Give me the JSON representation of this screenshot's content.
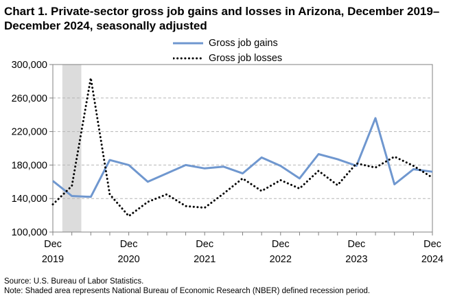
{
  "chart_data": {
    "type": "line",
    "title": "Chart 1. Private-sector gross job gains and losses in Arizona, December 2019–December 2024, seasonally adjusted",
    "x": [
      "Dec 2019",
      "Mar 2020",
      "Jun 2020",
      "Sep 2020",
      "Dec 2020",
      "Mar 2021",
      "Jun 2021",
      "Sep 2021",
      "Dec 2021",
      "Mar 2022",
      "Jun 2022",
      "Sep 2022",
      "Dec 2022",
      "Mar 2023",
      "Jun 2023",
      "Sep 2023",
      "Dec 2023",
      "Mar 2024",
      "Jun 2024",
      "Sep 2024",
      "Dec 2024"
    ],
    "series": [
      {
        "name": "Gross job gains",
        "style": "solid",
        "color": "#6f97cf",
        "values": [
          161000,
          143000,
          142000,
          186000,
          180000,
          160000,
          170000,
          180000,
          176000,
          178000,
          170000,
          189000,
          179000,
          164000,
          193000,
          187000,
          179000,
          236000,
          157000,
          175000,
          172000
        ]
      },
      {
        "name": "Gross job losses",
        "style": "dotted",
        "color": "#000000",
        "values": [
          133000,
          155000,
          284000,
          145000,
          119000,
          136000,
          145000,
          131000,
          129000,
          146000,
          164000,
          149000,
          162000,
          152000,
          173000,
          156000,
          182000,
          177000,
          190000,
          179000,
          165000
        ]
      }
    ],
    "xticks": [
      {
        "month": "Dec",
        "year": "2019",
        "index": 0
      },
      {
        "month": "Dec",
        "year": "2020",
        "index": 4
      },
      {
        "month": "Dec",
        "year": "2021",
        "index": 8
      },
      {
        "month": "Dec",
        "year": "2022",
        "index": 12
      },
      {
        "month": "Dec",
        "year": "2023",
        "index": 16
      },
      {
        "month": "Dec",
        "year": "2024",
        "index": 20
      }
    ],
    "yticks": [
      "100,000",
      "140,000",
      "180,000",
      "220,000",
      "260,000",
      "300,000"
    ],
    "ylim": [
      100000,
      300000
    ],
    "recession": {
      "start": 0.5,
      "end": 1.5,
      "color": "#dcdcdc"
    },
    "grid": true,
    "legend_position": "top-center"
  },
  "footer": {
    "source": "Source: U.S. Bureau of Labor Statistics.",
    "note": "Note: Shaded area represents National Bureau of Economic Research (NBER) defined recession period."
  }
}
